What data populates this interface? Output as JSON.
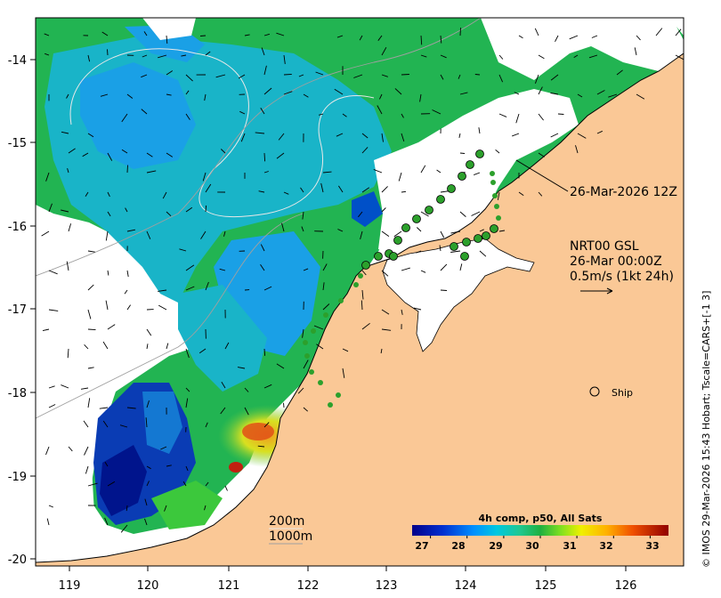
{
  "map": {
    "x_ticks": [
      "119",
      "120",
      "121",
      "122",
      "123",
      "124",
      "125",
      "126"
    ],
    "y_ticks": [
      "-14",
      "-15",
      "-16",
      "-17",
      "-18",
      "-19",
      "-20"
    ],
    "time_label": "26-Mar-2026 12Z",
    "current_product": "NRT00 GSL",
    "current_time": "26-Mar 00:00Z",
    "current_scale": "0.5m/s (1kt 24h)",
    "ship_label": "Ship",
    "depth_label_1": "200m",
    "depth_label_2": "1000m",
    "credit": "© IMOS 29-Mar-2026 15:43 Hobart; Tscale=CARS+[-1 3]",
    "colorbar": {
      "title": "4h comp, p50, All Sats",
      "ticks": [
        "27",
        "28",
        "29",
        "30",
        "31",
        "32",
        "33"
      ],
      "range": [
        26.5,
        33.5
      ]
    },
    "colors": {
      "land": "#fac896",
      "ocean_cloud": "#ffffff",
      "track_dot": "#2ca02c"
    }
  }
}
